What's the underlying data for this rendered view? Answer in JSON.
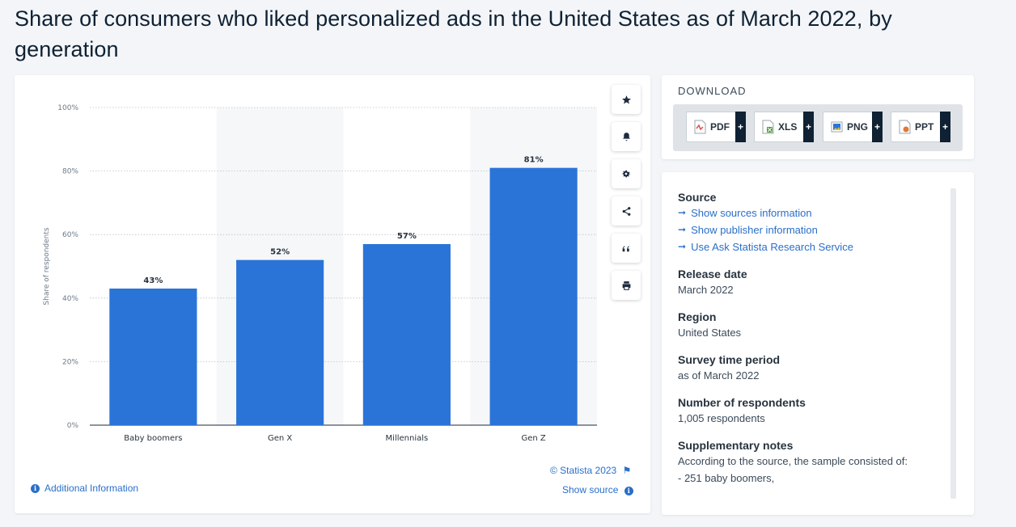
{
  "page": {
    "title": "Share of consumers who liked personalized ads in the United States as of March 2022, by generation"
  },
  "chart_data": {
    "type": "bar",
    "categories": [
      "Baby boomers",
      "Gen X",
      "Millennials",
      "Gen Z"
    ],
    "values": [
      43,
      52,
      57,
      81
    ],
    "value_labels": [
      "43%",
      "52%",
      "57%",
      "81%"
    ],
    "ylabel": "Share of respondents",
    "xlabel": "",
    "ylim": [
      0,
      100
    ],
    "yticks": [
      0,
      20,
      40,
      60,
      80,
      100
    ],
    "ytick_labels": [
      "0%",
      "20%",
      "40%",
      "60%",
      "80%",
      "100%"
    ],
    "grid": "horizontal dotted",
    "bar_color": "#2a74d8"
  },
  "chart_footer": {
    "copyright": "© Statista 2023",
    "show_source": "Show source",
    "additional_info": "Additional Information"
  },
  "tools": {
    "icons": [
      "star-icon",
      "bell-icon",
      "gear-icon",
      "share-icon",
      "quote-icon",
      "print-icon"
    ]
  },
  "download": {
    "title": "DOWNLOAD",
    "buttons": [
      {
        "label": "PDF",
        "color": "#d9534f"
      },
      {
        "label": "XLS",
        "color": "#4e9a3a"
      },
      {
        "label": "PNG",
        "color": "#2a74d8"
      },
      {
        "label": "PPT",
        "color": "#e07a35"
      }
    ],
    "plus": "+"
  },
  "info": {
    "source_heading": "Source",
    "links": [
      "Show sources information",
      "Show publisher information",
      "Use Ask Statista Research Service"
    ],
    "arrow": "➞",
    "release_heading": "Release date",
    "release_value": "March 2022",
    "region_heading": "Region",
    "region_value": "United States",
    "survey_heading": "Survey time period",
    "survey_value": "as of March 2022",
    "respondents_heading": "Number of respondents",
    "respondents_value": "1,005 respondents",
    "notes_heading": "Supplementary notes",
    "notes_line1": "According to the source, the sample consisted of:",
    "notes_line2": "- 251 baby boomers,"
  }
}
